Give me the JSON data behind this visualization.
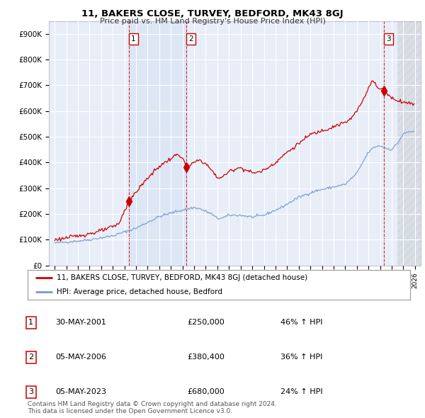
{
  "title": "11, BAKERS CLOSE, TURVEY, BEDFORD, MK43 8GJ",
  "subtitle": "Price paid vs. HM Land Registry's House Price Index (HPI)",
  "ylabel_ticks": [
    "£0",
    "£100K",
    "£200K",
    "£300K",
    "£400K",
    "£500K",
    "£600K",
    "£700K",
    "£800K",
    "£900K"
  ],
  "ytick_values": [
    0,
    100000,
    200000,
    300000,
    400000,
    500000,
    600000,
    700000,
    800000,
    900000
  ],
  "ylim": [
    0,
    950000
  ],
  "x_start_year": 1995,
  "x_end_year": 2026,
  "background_color": "#ffffff",
  "plot_bg_color": "#e8eef8",
  "grid_color": "#ffffff",
  "hpi_line_color": "#7799cc",
  "price_line_color": "#cc0000",
  "sale_marker_color": "#cc0000",
  "shade_color": "#dde8f5",
  "hatch_color": "#cccccc",
  "sales": [
    {
      "year": 2001.38,
      "price": 250000,
      "label": "1"
    },
    {
      "year": 2006.34,
      "price": 380400,
      "label": "2"
    },
    {
      "year": 2023.34,
      "price": 680000,
      "label": "3"
    }
  ],
  "sale_vline_color": "#cc0000",
  "legend_entries": [
    "11, BAKERS CLOSE, TURVEY, BEDFORD, MK43 8GJ (detached house)",
    "HPI: Average price, detached house, Bedford"
  ],
  "table_data": [
    {
      "num": "1",
      "date": "30-MAY-2001",
      "price": "£250,000",
      "hpi": "46% ↑ HPI"
    },
    {
      "num": "2",
      "date": "05-MAY-2006",
      "price": "£380,400",
      "hpi": "36% ↑ HPI"
    },
    {
      "num": "3",
      "date": "05-MAY-2023",
      "price": "£680,000",
      "hpi": "24% ↑ HPI"
    }
  ],
  "footnote": "Contains HM Land Registry data © Crown copyright and database right 2024.\nThis data is licensed under the Open Government Licence v3.0."
}
